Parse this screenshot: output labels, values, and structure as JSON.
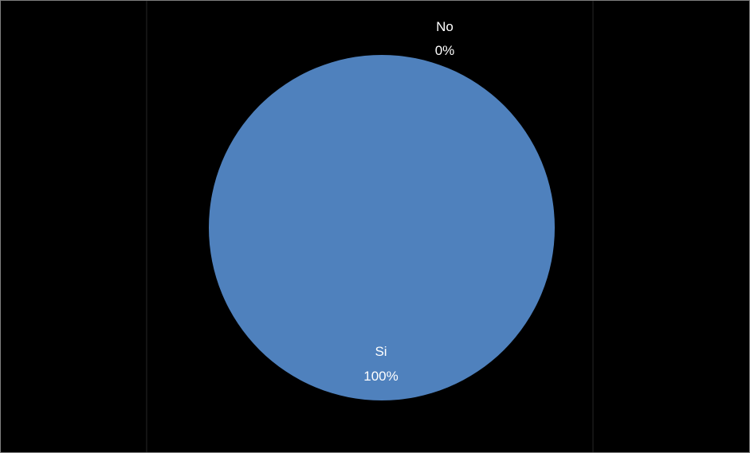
{
  "chart_data": {
    "type": "pie",
    "title": "",
    "categories": [
      "Si",
      "No"
    ],
    "values": [
      100,
      0
    ],
    "labels": [
      {
        "category": "Si",
        "percent_text": "100%"
      },
      {
        "category": "No",
        "percent_text": "0%"
      }
    ],
    "colors": {
      "background": "#000000",
      "slice_si": "#4f81bd",
      "slice_no": "#c0504d",
      "label_text": "#ffffff",
      "frame_border": "#7f7f7f",
      "plot_area_border": "#262626"
    },
    "legend": "none",
    "grid": false
  }
}
